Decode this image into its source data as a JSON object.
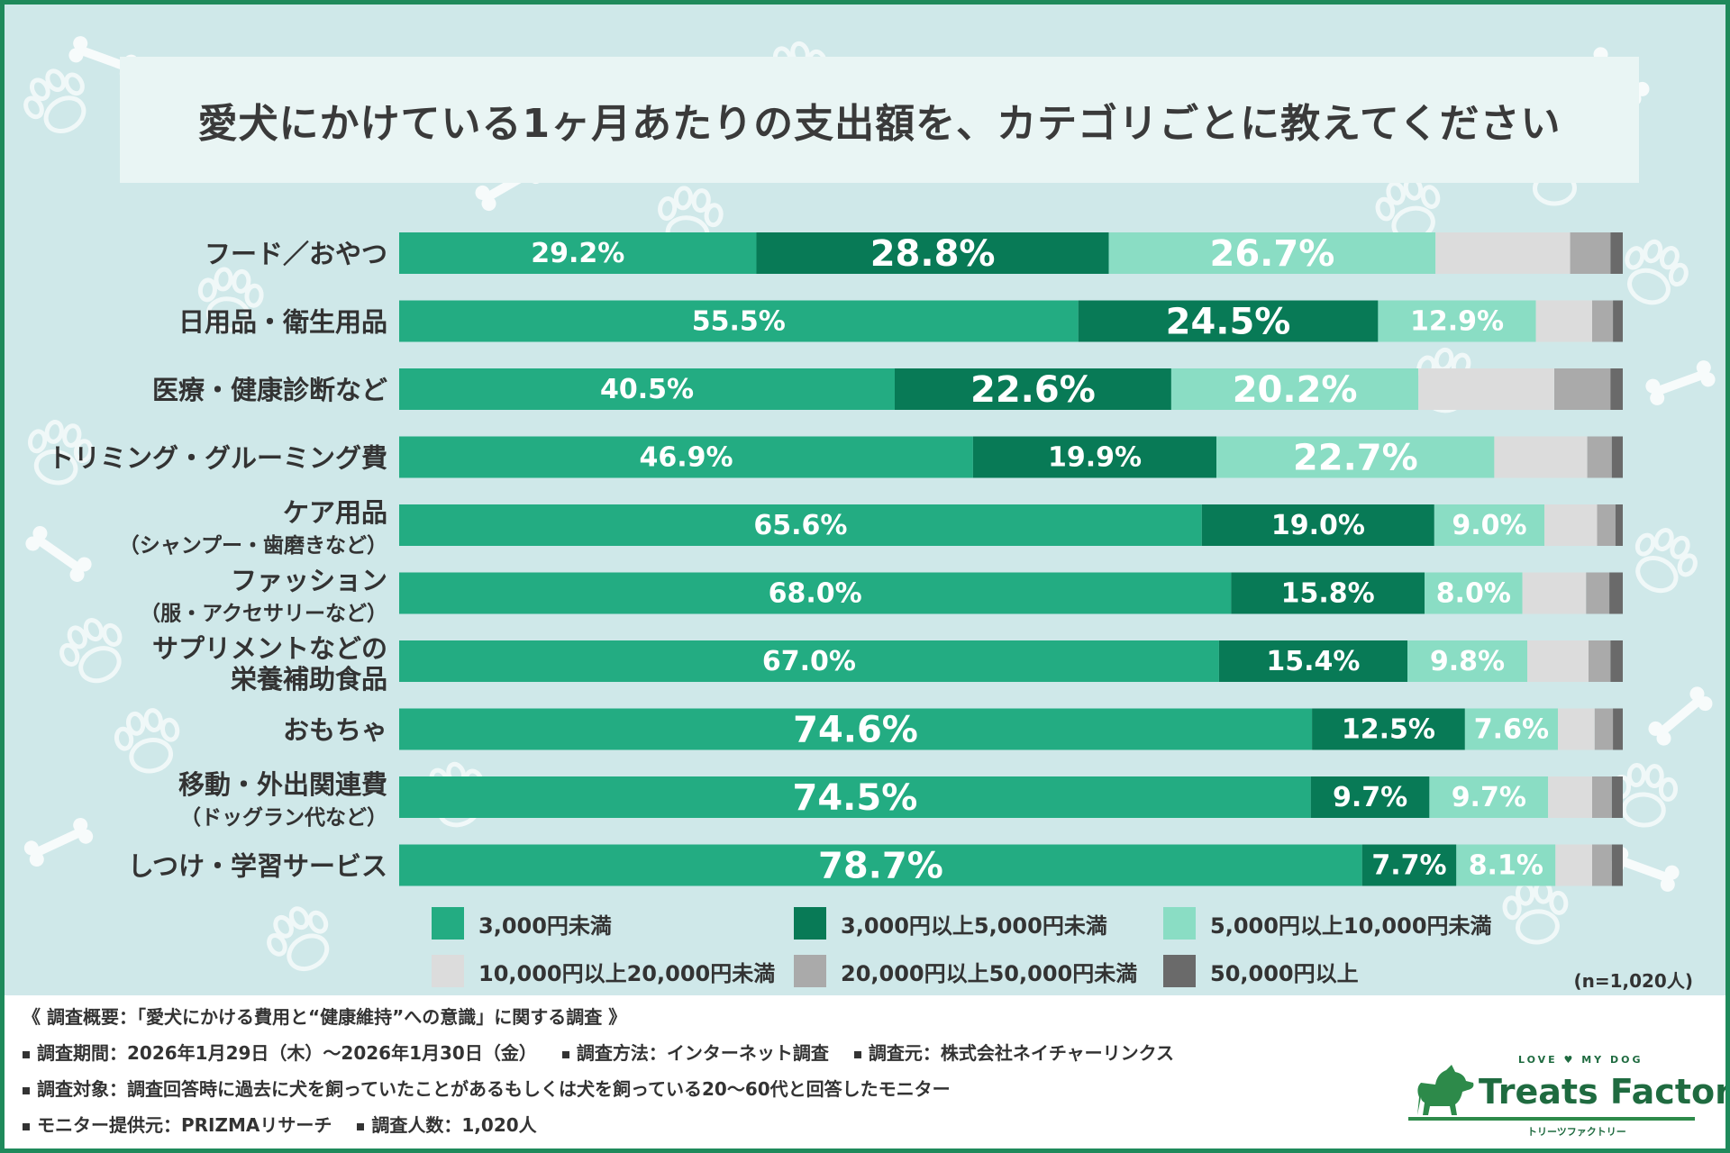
{
  "title": "愛犬にかけている1ヶ月あたりの支出額を、カテゴリごとに教えてください",
  "colors": [
    "#23ac82",
    "#087a56",
    "#8addc4",
    "#dcdcdc",
    "#aaaaaa",
    "#6a6a6a"
  ],
  "chart_data": {
    "type": "bar",
    "orientation": "horizontal",
    "stacked": true,
    "percent": true,
    "title": "愛犬にかけている1ヶ月あたりの支出額を、カテゴリごとに教えてください",
    "categories": [
      [
        "フード／おやつ"
      ],
      [
        "日用品・衛生用品"
      ],
      [
        "医療・健康診断など"
      ],
      [
        "トリミング・グルーミング費"
      ],
      [
        "ケア用品",
        "（シャンプー・歯磨きなど）"
      ],
      [
        "ファッション",
        "（服・アクセサリーなど）"
      ],
      [
        "サプリメントなどの",
        "栄養補助食品"
      ],
      [
        "おもちゃ"
      ],
      [
        "移動・外出関連費",
        "（ドッグラン代など）"
      ],
      [
        "しつけ・学習サービス"
      ]
    ],
    "series": [
      {
        "name": "3,000円未満",
        "values": [
          29.2,
          55.5,
          40.5,
          46.9,
          65.6,
          68.0,
          67.0,
          74.6,
          74.5,
          78.7
        ]
      },
      {
        "name": "3,000円以上5,000円未満",
        "values": [
          28.8,
          24.5,
          22.6,
          19.9,
          19.0,
          15.8,
          15.4,
          12.5,
          9.7,
          7.7
        ]
      },
      {
        "name": "5,000円以上10,000円未満",
        "values": [
          26.7,
          12.9,
          20.2,
          22.7,
          9.0,
          8.0,
          9.8,
          7.6,
          9.7,
          8.1
        ]
      },
      {
        "name": "10,000円以上20,000円未満",
        "values": [
          11.0,
          4.6,
          11.1,
          7.6,
          4.3,
          5.2,
          5.0,
          3.0,
          3.6,
          3.0
        ]
      },
      {
        "name": "20,000円以上50,000円未満",
        "values": [
          3.3,
          1.7,
          4.6,
          2.0,
          1.5,
          1.9,
          1.8,
          1.5,
          1.6,
          1.6
        ]
      },
      {
        "name": "50,000円以上",
        "values": [
          1.0,
          0.8,
          1.0,
          0.9,
          0.6,
          1.1,
          1.0,
          0.8,
          0.9,
          0.9
        ]
      }
    ],
    "labels": [
      [
        "29.2%",
        "28.8%",
        "26.7%"
      ],
      [
        "55.5%",
        "24.5%",
        "12.9%"
      ],
      [
        "40.5%",
        "22.6%",
        "20.2%"
      ],
      [
        "46.9%",
        "19.9%",
        "22.7%"
      ],
      [
        "65.6%",
        "19.0%",
        "9.0%"
      ],
      [
        "68.0%",
        "15.8%",
        "8.0%"
      ],
      [
        "67.0%",
        "15.4%",
        "9.8%"
      ],
      [
        "74.6%",
        "12.5%",
        "7.6%"
      ],
      [
        "74.5%",
        "9.7%",
        "9.7%"
      ],
      [
        "78.7%",
        "7.7%",
        "8.1%"
      ]
    ],
    "emphasis": [
      [
        0,
        1,
        1
      ],
      [
        0,
        1,
        0
      ],
      [
        0,
        1,
        1
      ],
      [
        0,
        0,
        1
      ],
      [
        0,
        0,
        0
      ],
      [
        0,
        0,
        0
      ],
      [
        0,
        0,
        0
      ],
      [
        1,
        0,
        0
      ],
      [
        1,
        0,
        0
      ],
      [
        1,
        0,
        0
      ]
    ],
    "xlim": [
      0,
      100
    ]
  },
  "n_note": "(n=1,020人)",
  "footer": {
    "summary": "《 調査概要：「愛犬にかける費用と“健康維持”への意識」に関する調査 》",
    "period": "調査期間：2026年1月29日（木）～2026年1月30日（金）",
    "method": "調査方法：インターネット調査",
    "origin": "調査元：株式会社ネイチャーリンクス",
    "target": "調査対象：調査回答時に過去に犬を飼っていたことがあるもしくは犬を飼っている20～60代と回答したモニター",
    "provider": "モニター提供元：PRIZMAリサーチ",
    "count": "調査人数：1,020人"
  },
  "logo": {
    "tagline": "LOVE ♥ MY DOG",
    "name": "Treats Factory",
    "kana": "トリーツファクトリー"
  }
}
